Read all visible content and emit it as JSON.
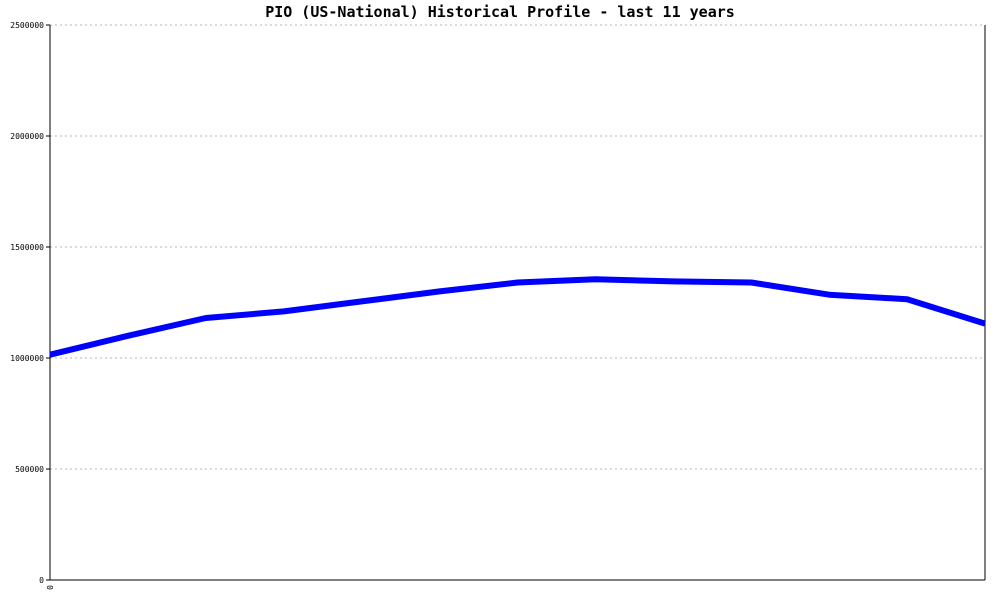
{
  "chart_data": {
    "type": "line",
    "title": "PIO (US-National) Historical Profile - last 11 years",
    "xlabel": "",
    "ylabel": "",
    "x_tick_labels": [
      "0"
    ],
    "y_tick_labels": [
      "0",
      "500000",
      "1000000",
      "1500000",
      "2000000",
      "2500000"
    ],
    "ylim": [
      0,
      2500000
    ],
    "grid": true,
    "series": [
      {
        "color": "#0000ff",
        "values": [
          1015000,
          1100000,
          1180000,
          1210000,
          1255000,
          1300000,
          1340000,
          1355000,
          1345000,
          1340000,
          1285000,
          1265000,
          1155000
        ]
      }
    ]
  }
}
